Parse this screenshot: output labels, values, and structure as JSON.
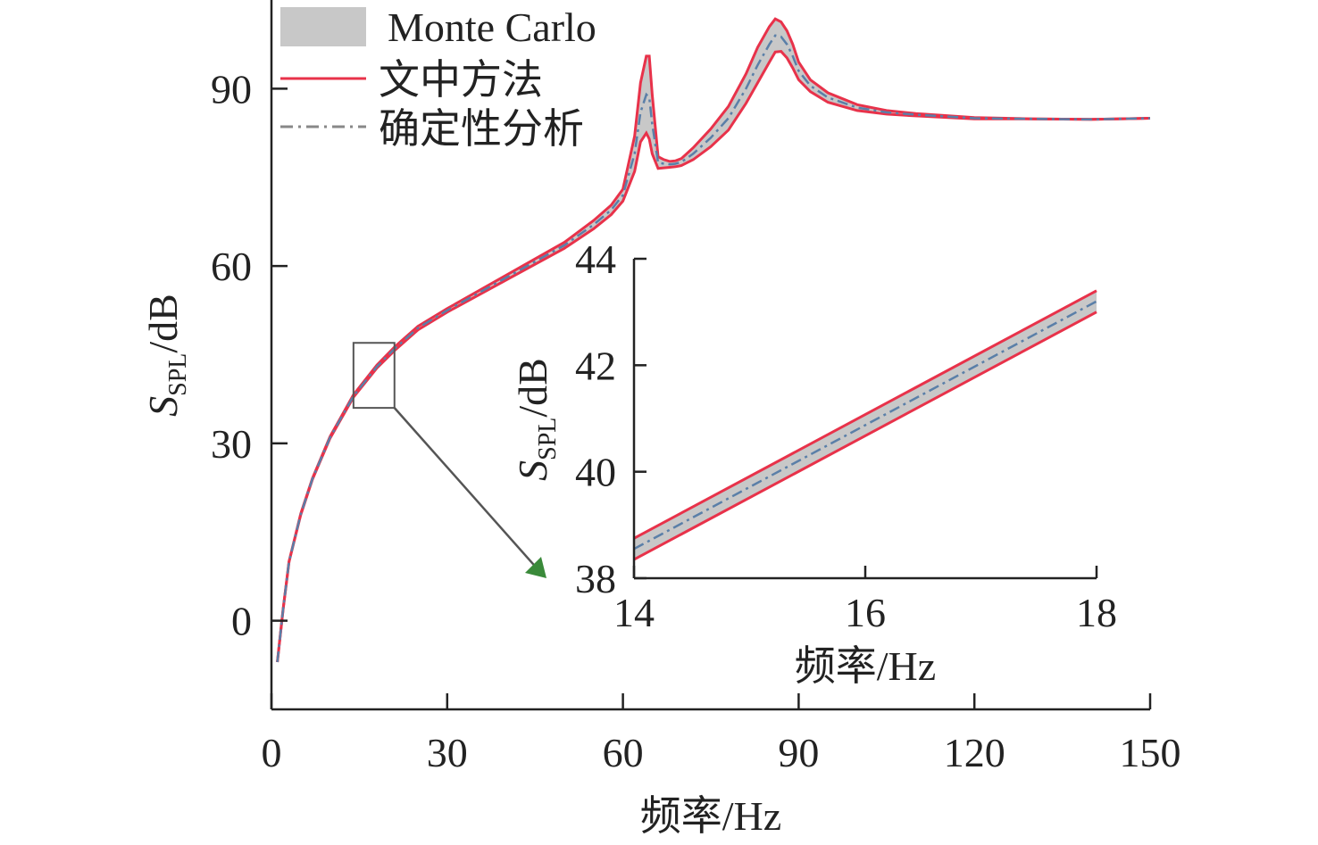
{
  "chart_data": [
    {
      "type": "line",
      "xlabel": "频率/Hz",
      "ylabel_main": "S",
      "ylabel_sub": "SPL",
      "ylabel_unit": "/dB",
      "xlim": [
        0,
        150
      ],
      "ylim": [
        -15,
        105
      ],
      "xticks": [
        0,
        30,
        60,
        90,
        120,
        150
      ],
      "yticks": [
        0,
        30,
        60,
        90
      ],
      "legend_position": "top-left",
      "legend": [
        {
          "label": "Monte Carlo",
          "style": "band"
        },
        {
          "label": "文中方法",
          "style": "solid"
        },
        {
          "label": "确定性分析",
          "style": "dash-dot"
        }
      ],
      "series": [
        {
          "name": "确定性分析",
          "x": [
            1,
            2,
            3,
            5,
            7,
            10,
            14,
            18,
            21,
            25,
            30,
            40,
            50,
            55,
            58,
            60,
            62,
            63,
            64,
            64.5,
            65,
            66,
            67,
            68,
            69,
            70,
            72,
            75,
            78,
            81,
            83,
            85,
            86,
            87,
            88,
            89,
            90,
            92,
            95,
            100,
            105,
            110,
            120,
            130,
            140,
            150
          ],
          "y": [
            -7,
            2,
            10,
            18,
            24,
            31,
            38,
            43,
            46,
            49.5,
            52.5,
            58,
            63.5,
            67,
            69.5,
            72,
            79,
            86,
            89,
            88.5,
            84,
            77.5,
            77.3,
            77.2,
            77.3,
            77.6,
            79,
            81.7,
            85,
            90,
            94,
            97.5,
            99,
            98.8,
            97.5,
            95.5,
            93,
            90.5,
            88.5,
            86.8,
            86,
            85.6,
            85,
            84.9,
            84.8,
            85
          ]
        }
      ],
      "band_halfwidth": [
        0,
        0,
        0,
        0.1,
        0.1,
        0.15,
        0.2,
        0.25,
        0.3,
        0.3,
        0.3,
        0.4,
        0.5,
        0.7,
        0.8,
        1,
        3,
        5,
        6.5,
        7,
        5,
        1,
        0.7,
        0.5,
        0.5,
        0.6,
        1,
        1.5,
        2,
        2.5,
        3,
        3,
        2.8,
        2.5,
        2.3,
        2,
        1.5,
        1,
        0.8,
        0.5,
        0.3,
        0.2,
        0.1,
        0,
        0,
        0
      ],
      "annotation": {
        "box_x": [
          14,
          21
        ],
        "box_y": [
          36,
          47
        ]
      }
    },
    {
      "type": "line",
      "xlabel": "频率/Hz",
      "ylabel_main": "S",
      "ylabel_sub": "SPL",
      "ylabel_unit": "/dB",
      "xlim": [
        14,
        18
      ],
      "ylim": [
        38,
        44
      ],
      "xticks": [
        14,
        16,
        18
      ],
      "yticks": [
        38,
        40,
        42,
        44
      ],
      "series": [
        {
          "name": "确定性分析",
          "x": [
            14,
            18
          ],
          "y": [
            38.55,
            43.2
          ]
        }
      ],
      "band": {
        "x": [
          14,
          18
        ],
        "lower": [
          38.35,
          43.0
        ],
        "upper": [
          38.75,
          43.4
        ]
      }
    }
  ],
  "colors": {
    "band": "#c8c8c8",
    "band_edge": "#e8324a",
    "deterministic": "#5a7fa8",
    "axis": "#222222",
    "annotation": "#555555",
    "arrow_head": "#3a8a3a"
  }
}
